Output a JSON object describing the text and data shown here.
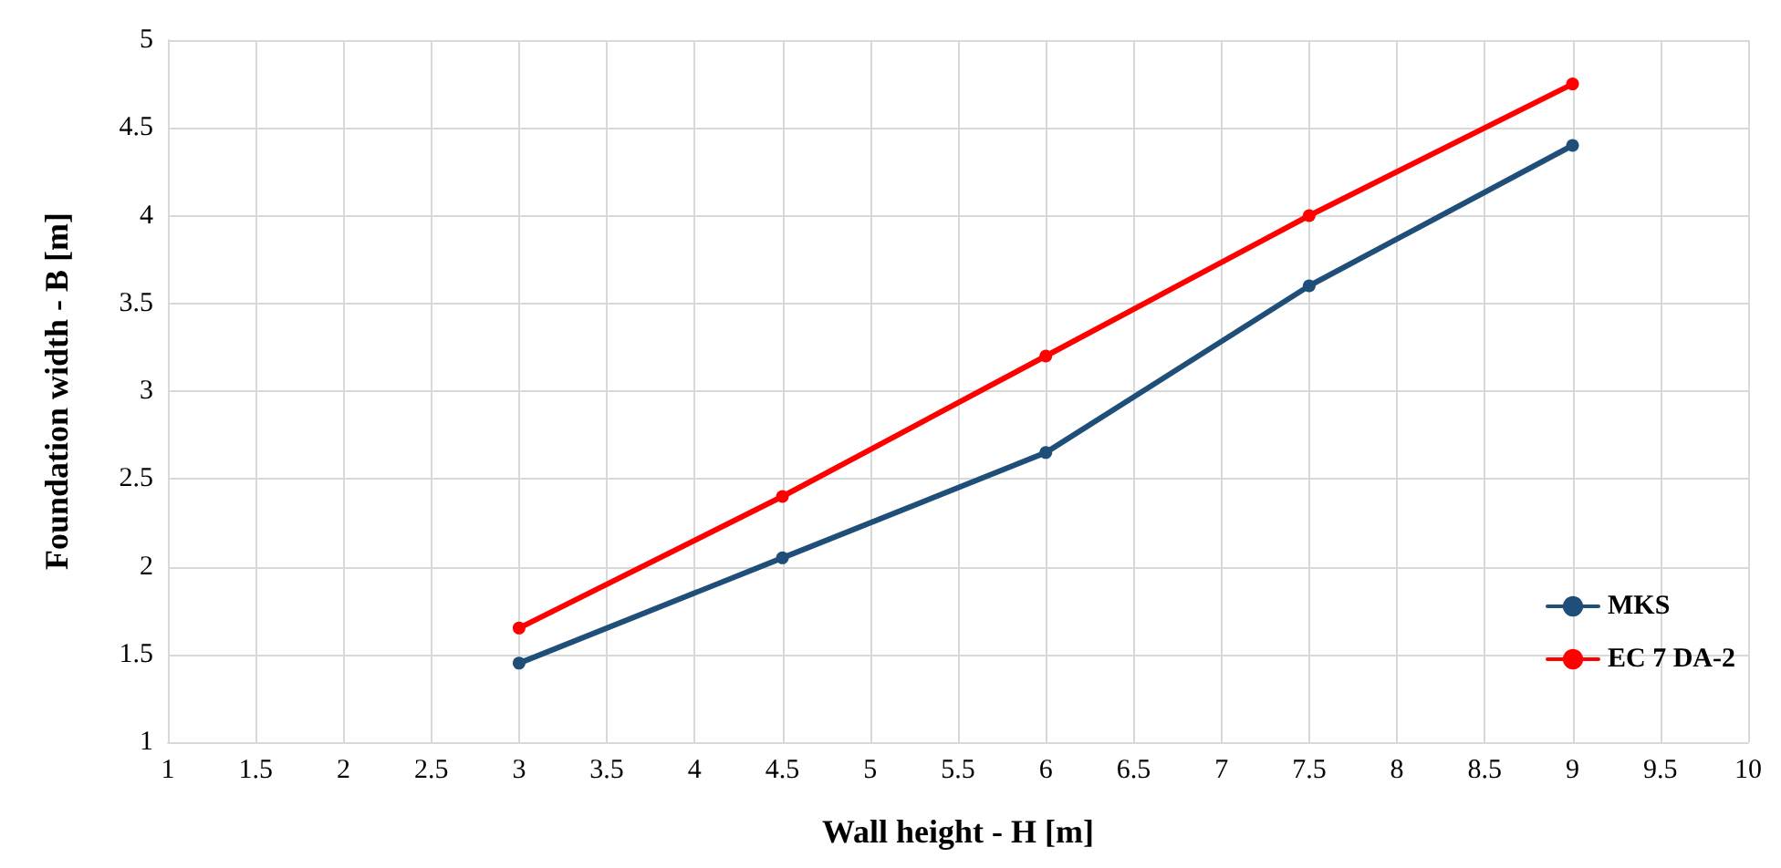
{
  "chart_data": {
    "type": "line",
    "xlabel": "Wall height - H [m]",
    "ylabel": "Foundation width - B [m]",
    "x": [
      3,
      4.5,
      6,
      7.5,
      9
    ],
    "series": [
      {
        "name": "MKS",
        "color": "#1f4e79",
        "values": [
          1.45,
          2.05,
          2.65,
          3.6,
          4.4
        ]
      },
      {
        "name": "EC 7 DA-2",
        "color": "#ff0000",
        "values": [
          1.65,
          2.4,
          3.2,
          4.0,
          4.75
        ]
      }
    ],
    "xlim": [
      1,
      10
    ],
    "xticks": [
      1,
      1.5,
      2,
      2.5,
      3,
      3.5,
      4,
      4.5,
      5,
      5.5,
      6,
      6.5,
      7,
      7.5,
      8,
      8.5,
      9,
      9.5,
      10
    ],
    "ylim": [
      1,
      5
    ],
    "yticks": [
      1,
      1.5,
      2,
      2.5,
      3,
      3.5,
      4,
      4.5,
      5
    ],
    "grid": true,
    "legend": "right",
    "marker": "circle",
    "line_style": "solid"
  }
}
